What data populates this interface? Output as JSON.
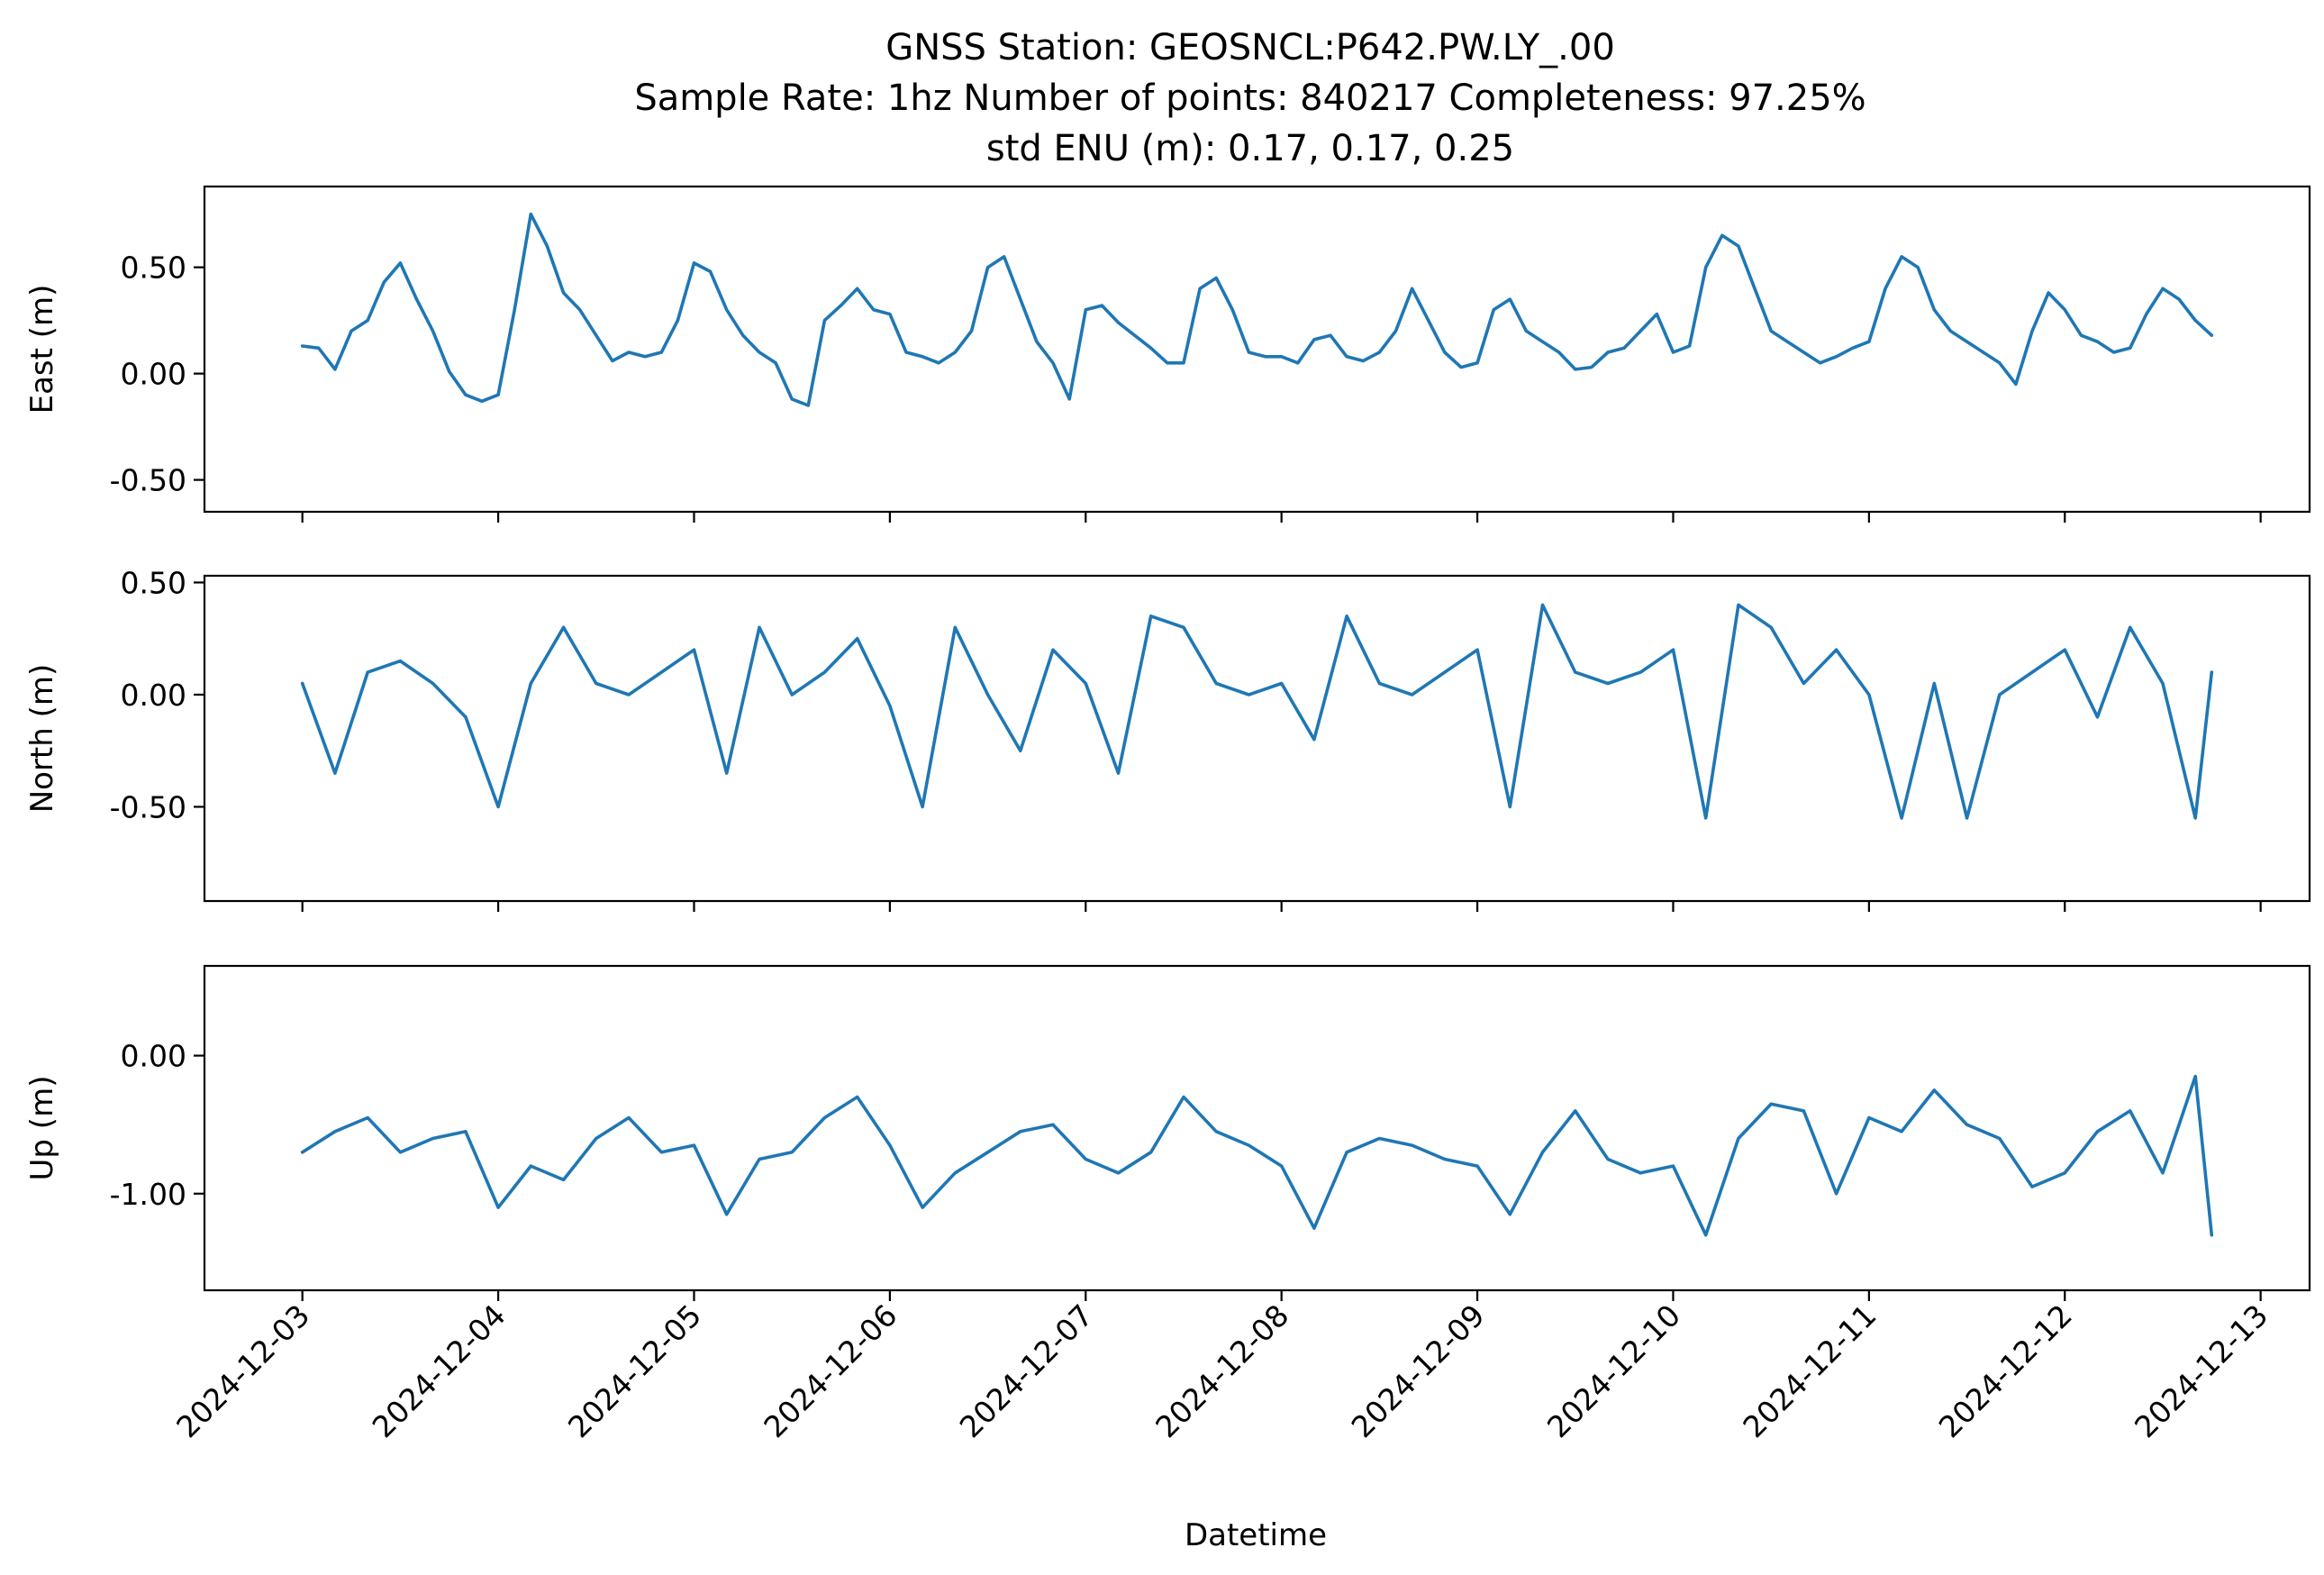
{
  "figure": {
    "title_lines": [
      "GNSS Station: GEOSNCL:P642.PW.LY_.00",
      "Sample Rate: 1hz   Number of points: 840217    Completeness:  97.25%",
      "std ENU (m):  0.17, 0.17, 0.25"
    ],
    "xlabel": "Datetime",
    "line_color": "#1f77b4"
  },
  "chart_data": [
    {
      "type": "line",
      "ylabel": "East (m)",
      "ylim": [
        -0.65,
        0.88
      ],
      "yticks": [
        0.5,
        0.0,
        -0.5
      ],
      "ytick_labels": [
        "0.50",
        "0.00",
        "-0.50"
      ],
      "xlim": [
        "2024-12-02T12:00",
        "2024-12-13T06:00"
      ],
      "xticks": [
        "2024-12-03",
        "2024-12-04",
        "2024-12-05",
        "2024-12-06",
        "2024-12-07",
        "2024-12-08",
        "2024-12-09",
        "2024-12-10",
        "2024-12-11",
        "2024-12-12",
        "2024-12-13"
      ],
      "xtick_labels": [],
      "grid": false,
      "x": [
        "2024-12-03 00:00",
        "2024-12-03 02:00",
        "2024-12-03 04:00",
        "2024-12-03 06:00",
        "2024-12-03 08:00",
        "2024-12-03 10:00",
        "2024-12-03 12:00",
        "2024-12-03 14:00",
        "2024-12-03 16:00",
        "2024-12-03 18:00",
        "2024-12-03 20:00",
        "2024-12-03 22:00",
        "2024-12-04 00:00",
        "2024-12-04 02:00",
        "2024-12-04 04:00",
        "2024-12-04 06:00",
        "2024-12-04 08:00",
        "2024-12-04 10:00",
        "2024-12-04 12:00",
        "2024-12-04 14:00",
        "2024-12-04 16:00",
        "2024-12-04 18:00",
        "2024-12-04 20:00",
        "2024-12-04 22:00",
        "2024-12-05 00:00",
        "2024-12-05 02:00",
        "2024-12-05 04:00",
        "2024-12-05 06:00",
        "2024-12-05 08:00",
        "2024-12-05 10:00",
        "2024-12-05 12:00",
        "2024-12-05 14:00",
        "2024-12-05 16:00",
        "2024-12-05 18:00",
        "2024-12-05 20:00",
        "2024-12-05 22:00",
        "2024-12-06 00:00",
        "2024-12-06 02:00",
        "2024-12-06 04:00",
        "2024-12-06 06:00",
        "2024-12-06 08:00",
        "2024-12-06 10:00",
        "2024-12-06 12:00",
        "2024-12-06 14:00",
        "2024-12-06 16:00",
        "2024-12-06 18:00",
        "2024-12-06 20:00",
        "2024-12-06 22:00",
        "2024-12-07 00:00",
        "2024-12-07 02:00",
        "2024-12-07 04:00",
        "2024-12-07 06:00",
        "2024-12-07 08:00",
        "2024-12-07 10:00",
        "2024-12-07 12:00",
        "2024-12-07 14:00",
        "2024-12-07 16:00",
        "2024-12-07 18:00",
        "2024-12-07 20:00",
        "2024-12-07 22:00",
        "2024-12-08 00:00",
        "2024-12-08 02:00",
        "2024-12-08 04:00",
        "2024-12-08 06:00",
        "2024-12-08 08:00",
        "2024-12-08 10:00",
        "2024-12-08 12:00",
        "2024-12-08 14:00",
        "2024-12-08 16:00",
        "2024-12-08 18:00",
        "2024-12-08 20:00",
        "2024-12-08 22:00",
        "2024-12-09 00:00",
        "2024-12-09 02:00",
        "2024-12-09 04:00",
        "2024-12-09 06:00",
        "2024-12-09 08:00",
        "2024-12-09 10:00",
        "2024-12-09 12:00",
        "2024-12-09 14:00",
        "2024-12-09 16:00",
        "2024-12-09 18:00",
        "2024-12-09 20:00",
        "2024-12-09 22:00",
        "2024-12-10 00:00",
        "2024-12-10 02:00",
        "2024-12-10 04:00",
        "2024-12-10 06:00",
        "2024-12-10 08:00",
        "2024-12-10 10:00",
        "2024-12-10 12:00",
        "2024-12-10 14:00",
        "2024-12-10 16:00",
        "2024-12-10 18:00",
        "2024-12-10 20:00",
        "2024-12-10 22:00",
        "2024-12-11 00:00",
        "2024-12-11 02:00",
        "2024-12-11 04:00",
        "2024-12-11 06:00",
        "2024-12-11 08:00",
        "2024-12-11 10:00",
        "2024-12-11 12:00",
        "2024-12-11 14:00",
        "2024-12-11 16:00",
        "2024-12-11 18:00",
        "2024-12-11 20:00",
        "2024-12-11 22:00",
        "2024-12-12 00:00",
        "2024-12-12 02:00",
        "2024-12-12 04:00",
        "2024-12-12 06:00",
        "2024-12-12 08:00",
        "2024-12-12 10:00",
        "2024-12-12 12:00",
        "2024-12-12 14:00",
        "2024-12-12 16:00",
        "2024-12-12 18:00"
      ],
      "series": [
        {
          "values": [
            0.13,
            0.12,
            0.02,
            0.2,
            0.25,
            0.43,
            0.52,
            0.35,
            0.2,
            0.01,
            -0.1,
            -0.13,
            -0.1,
            0.3,
            0.75,
            0.6,
            0.38,
            0.3,
            0.18,
            0.06,
            0.1,
            0.08,
            0.1,
            0.25,
            0.52,
            0.48,
            0.3,
            0.18,
            0.1,
            0.05,
            -0.12,
            -0.15,
            0.25,
            0.32,
            0.4,
            0.3,
            0.28,
            0.1,
            0.08,
            0.05,
            0.1,
            0.2,
            0.5,
            0.55,
            0.35,
            0.15,
            0.05,
            -0.12,
            0.3,
            0.32,
            0.24,
            0.18,
            0.12,
            0.05,
            0.05,
            0.4,
            0.45,
            0.3,
            0.1,
            0.08,
            0.08,
            0.05,
            0.16,
            0.18,
            0.08,
            0.06,
            0.1,
            0.2,
            0.4,
            0.25,
            0.1,
            0.03,
            0.05,
            0.3,
            0.35,
            0.2,
            0.15,
            0.1,
            0.02,
            0.03,
            0.1,
            0.12,
            0.2,
            0.28,
            0.1,
            0.13,
            0.5,
            0.65,
            0.6,
            0.4,
            0.2,
            0.15,
            0.1,
            0.05,
            0.08,
            0.12,
            0.15,
            0.4,
            0.55,
            0.5,
            0.3,
            0.2,
            0.15,
            0.1,
            0.05,
            -0.05,
            0.2,
            0.38,
            0.3,
            0.18,
            0.15,
            0.1,
            0.12,
            0.28,
            0.4,
            0.35,
            0.25,
            0.18
          ]
        }
      ]
    },
    {
      "type": "line",
      "ylabel": "North (m)",
      "ylim": [
        -0.92,
        0.53
      ],
      "yticks": [
        0.5,
        0.0,
        -0.5
      ],
      "ytick_labels": [
        "0.50",
        "0.00",
        "-0.50"
      ],
      "xlim": [
        "2024-12-02T12:00",
        "2024-12-13T06:00"
      ],
      "xticks": [
        "2024-12-03",
        "2024-12-04",
        "2024-12-05",
        "2024-12-06",
        "2024-12-07",
        "2024-12-08",
        "2024-12-09",
        "2024-12-10",
        "2024-12-11",
        "2024-12-12",
        "2024-12-13"
      ],
      "xtick_labels": [],
      "grid": false,
      "x": [
        "2024-12-03 00:00",
        "2024-12-03 04:00",
        "2024-12-03 08:00",
        "2024-12-03 12:00",
        "2024-12-03 16:00",
        "2024-12-03 20:00",
        "2024-12-04 00:00",
        "2024-12-04 04:00",
        "2024-12-04 08:00",
        "2024-12-04 12:00",
        "2024-12-04 16:00",
        "2024-12-04 20:00",
        "2024-12-05 00:00",
        "2024-12-05 04:00",
        "2024-12-05 08:00",
        "2024-12-05 12:00",
        "2024-12-05 16:00",
        "2024-12-05 20:00",
        "2024-12-06 00:00",
        "2024-12-06 04:00",
        "2024-12-06 08:00",
        "2024-12-06 12:00",
        "2024-12-06 16:00",
        "2024-12-06 20:00",
        "2024-12-07 00:00",
        "2024-12-07 04:00",
        "2024-12-07 08:00",
        "2024-12-07 12:00",
        "2024-12-07 16:00",
        "2024-12-07 20:00",
        "2024-12-08 00:00",
        "2024-12-08 04:00",
        "2024-12-08 08:00",
        "2024-12-08 12:00",
        "2024-12-08 16:00",
        "2024-12-08 20:00",
        "2024-12-09 00:00",
        "2024-12-09 04:00",
        "2024-12-09 08:00",
        "2024-12-09 12:00",
        "2024-12-09 16:00",
        "2024-12-09 20:00",
        "2024-12-10 00:00",
        "2024-12-10 04:00",
        "2024-12-10 08:00",
        "2024-12-10 12:00",
        "2024-12-10 16:00",
        "2024-12-10 20:00",
        "2024-12-11 00:00",
        "2024-12-11 04:00",
        "2024-12-11 08:00",
        "2024-12-11 12:00",
        "2024-12-11 16:00",
        "2024-12-11 20:00",
        "2024-12-12 00:00",
        "2024-12-12 04:00",
        "2024-12-12 08:00",
        "2024-12-12 12:00",
        "2024-12-12 16:00",
        "2024-12-12 18:00"
      ],
      "series": [
        {
          "values": [
            0.05,
            -0.35,
            0.1,
            0.15,
            0.05,
            -0.1,
            -0.5,
            0.05,
            0.3,
            0.05,
            0.0,
            0.1,
            0.2,
            -0.35,
            0.3,
            0.0,
            0.1,
            0.25,
            -0.05,
            -0.5,
            0.3,
            0.0,
            -0.25,
            0.2,
            0.05,
            -0.35,
            0.35,
            0.3,
            0.05,
            0.0,
            0.05,
            -0.2,
            0.35,
            0.05,
            0.0,
            0.1,
            0.2,
            -0.5,
            0.4,
            0.1,
            0.05,
            0.1,
            0.2,
            -0.55,
            0.4,
            0.3,
            0.05,
            0.2,
            0.0,
            -0.55,
            0.05,
            -0.55,
            0.0,
            0.1,
            0.2,
            -0.1,
            0.3,
            0.05,
            -0.55,
            0.1
          ]
        }
      ]
    },
    {
      "type": "line",
      "ylabel": "Up (m)",
      "ylim": [
        -1.7,
        0.65
      ],
      "yticks": [
        0.0,
        -1.0
      ],
      "ytick_labels": [
        "0.00",
        "-1.00"
      ],
      "xlim": [
        "2024-12-02T12:00",
        "2024-12-13T06:00"
      ],
      "xticks": [
        "2024-12-03",
        "2024-12-04",
        "2024-12-05",
        "2024-12-06",
        "2024-12-07",
        "2024-12-08",
        "2024-12-09",
        "2024-12-10",
        "2024-12-11",
        "2024-12-12",
        "2024-12-13"
      ],
      "xtick_labels": [
        "2024-12-03",
        "2024-12-04",
        "2024-12-05",
        "2024-12-06",
        "2024-12-07",
        "2024-12-08",
        "2024-12-09",
        "2024-12-10",
        "2024-12-11",
        "2024-12-12",
        "2024-12-13"
      ],
      "grid": false,
      "x": [
        "2024-12-03 00:00",
        "2024-12-03 04:00",
        "2024-12-03 08:00",
        "2024-12-03 12:00",
        "2024-12-03 16:00",
        "2024-12-03 20:00",
        "2024-12-04 00:00",
        "2024-12-04 04:00",
        "2024-12-04 08:00",
        "2024-12-04 12:00",
        "2024-12-04 16:00",
        "2024-12-04 20:00",
        "2024-12-05 00:00",
        "2024-12-05 04:00",
        "2024-12-05 08:00",
        "2024-12-05 12:00",
        "2024-12-05 16:00",
        "2024-12-05 20:00",
        "2024-12-06 00:00",
        "2024-12-06 04:00",
        "2024-12-06 08:00",
        "2024-12-06 12:00",
        "2024-12-06 16:00",
        "2024-12-06 20:00",
        "2024-12-07 00:00",
        "2024-12-07 04:00",
        "2024-12-07 08:00",
        "2024-12-07 12:00",
        "2024-12-07 16:00",
        "2024-12-07 20:00",
        "2024-12-08 00:00",
        "2024-12-08 04:00",
        "2024-12-08 08:00",
        "2024-12-08 12:00",
        "2024-12-08 16:00",
        "2024-12-08 20:00",
        "2024-12-09 00:00",
        "2024-12-09 04:00",
        "2024-12-09 08:00",
        "2024-12-09 12:00",
        "2024-12-09 16:00",
        "2024-12-09 20:00",
        "2024-12-10 00:00",
        "2024-12-10 04:00",
        "2024-12-10 08:00",
        "2024-12-10 12:00",
        "2024-12-10 16:00",
        "2024-12-10 20:00",
        "2024-12-11 00:00",
        "2024-12-11 04:00",
        "2024-12-11 08:00",
        "2024-12-11 12:00",
        "2024-12-11 16:00",
        "2024-12-11 20:00",
        "2024-12-12 00:00",
        "2024-12-12 04:00",
        "2024-12-12 08:00",
        "2024-12-12 12:00",
        "2024-12-12 16:00",
        "2024-12-12 18:00"
      ],
      "series": [
        {
          "values": [
            -0.7,
            -0.55,
            -0.45,
            -0.7,
            -0.6,
            -0.55,
            -1.1,
            -0.8,
            -0.9,
            -0.6,
            -0.45,
            -0.7,
            -0.65,
            -1.15,
            -0.75,
            -0.7,
            -0.45,
            -0.3,
            -0.65,
            -1.1,
            -0.85,
            -0.7,
            -0.55,
            -0.5,
            -0.75,
            -0.85,
            -0.7,
            -0.3,
            -0.55,
            -0.65,
            -0.8,
            -1.25,
            -0.7,
            -0.6,
            -0.65,
            -0.75,
            -0.8,
            -1.15,
            -0.7,
            -0.4,
            -0.75,
            -0.85,
            -0.8,
            -1.3,
            -0.6,
            -0.35,
            -0.4,
            -1.0,
            -0.45,
            -0.55,
            -0.25,
            -0.5,
            -0.6,
            -0.95,
            -0.85,
            -0.55,
            -0.4,
            -0.85,
            -0.15,
            -1.3
          ]
        }
      ]
    }
  ]
}
